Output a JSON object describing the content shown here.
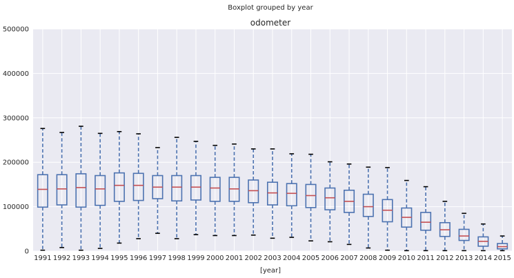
{
  "chart_data": {
    "type": "boxplot",
    "suptitle": "Boxplot grouped by year",
    "title": "odometer",
    "xlabel": "[year]",
    "ylabel": "",
    "ylim": [
      0,
      500000
    ],
    "yticks": [
      0,
      100000,
      200000,
      300000,
      400000,
      500000
    ],
    "grid": true,
    "categories": [
      "1991",
      "1992",
      "1993",
      "1994",
      "1995",
      "1996",
      "1997",
      "1998",
      "1999",
      "2000",
      "2001",
      "2002",
      "2003",
      "2004",
      "2005",
      "2006",
      "2007",
      "2008",
      "2009",
      "2010",
      "2011",
      "2012",
      "2013",
      "2014",
      "2015"
    ],
    "boxes": [
      {
        "whislo": 2000,
        "q1": 99000,
        "med": 139000,
        "q3": 172000,
        "whishi": 276000
      },
      {
        "whislo": 8000,
        "q1": 104000,
        "med": 140000,
        "q3": 172000,
        "whishi": 267000
      },
      {
        "whislo": 2000,
        "q1": 99000,
        "med": 143000,
        "q3": 174000,
        "whishi": 281000
      },
      {
        "whislo": 6000,
        "q1": 103000,
        "med": 140000,
        "q3": 170000,
        "whishi": 265000
      },
      {
        "whislo": 18000,
        "q1": 112000,
        "med": 148000,
        "q3": 176000,
        "whishi": 269000
      },
      {
        "whislo": 28000,
        "q1": 114000,
        "med": 148000,
        "q3": 175000,
        "whishi": 264000
      },
      {
        "whislo": 40000,
        "q1": 118000,
        "med": 144000,
        "q3": 170000,
        "whishi": 233000
      },
      {
        "whislo": 28000,
        "q1": 113000,
        "med": 144000,
        "q3": 170000,
        "whishi": 256000
      },
      {
        "whislo": 37000,
        "q1": 115000,
        "med": 144000,
        "q3": 170000,
        "whishi": 247000
      },
      {
        "whislo": 35000,
        "q1": 112000,
        "med": 142000,
        "q3": 166000,
        "whishi": 238000
      },
      {
        "whislo": 35000,
        "q1": 112000,
        "med": 140000,
        "q3": 166000,
        "whishi": 241000
      },
      {
        "whislo": 36000,
        "q1": 109000,
        "med": 136000,
        "q3": 160000,
        "whishi": 230000
      },
      {
        "whislo": 29000,
        "q1": 104000,
        "med": 131000,
        "q3": 155000,
        "whishi": 230000
      },
      {
        "whislo": 31000,
        "q1": 102000,
        "med": 130000,
        "q3": 152000,
        "whishi": 219000
      },
      {
        "whislo": 23000,
        "q1": 98000,
        "med": 125000,
        "q3": 150000,
        "whishi": 218000
      },
      {
        "whislo": 21000,
        "q1": 93000,
        "med": 120000,
        "q3": 142000,
        "whishi": 201000
      },
      {
        "whislo": 15000,
        "q1": 87000,
        "med": 112000,
        "q3": 137000,
        "whishi": 196000
      },
      {
        "whislo": 7000,
        "q1": 78000,
        "med": 100000,
        "q3": 128000,
        "whishi": 189000
      },
      {
        "whislo": 2000,
        "q1": 66000,
        "med": 92000,
        "q3": 116000,
        "whishi": 188000
      },
      {
        "whislo": 1000,
        "q1": 54000,
        "med": 76000,
        "q3": 97000,
        "whishi": 159000
      },
      {
        "whislo": 1000,
        "q1": 47000,
        "med": 65000,
        "q3": 87000,
        "whishi": 145000
      },
      {
        "whislo": 1000,
        "q1": 33000,
        "med": 48000,
        "q3": 64000,
        "whishi": 112000
      },
      {
        "whislo": 1000,
        "q1": 24000,
        "med": 34000,
        "q3": 49000,
        "whishi": 85000
      },
      {
        "whislo": 1000,
        "q1": 11000,
        "med": 22000,
        "q3": 32000,
        "whishi": 61000
      },
      {
        "whislo": 1000,
        "q1": 5000,
        "med": 10000,
        "q3": 17000,
        "whishi": 34000
      }
    ],
    "colors": {
      "background": "#eaeaf2",
      "grid": "#ffffff",
      "box": "#4c72b0",
      "whisker": "#4c72b0",
      "median": "#c44e52",
      "cap": "#000000"
    }
  }
}
